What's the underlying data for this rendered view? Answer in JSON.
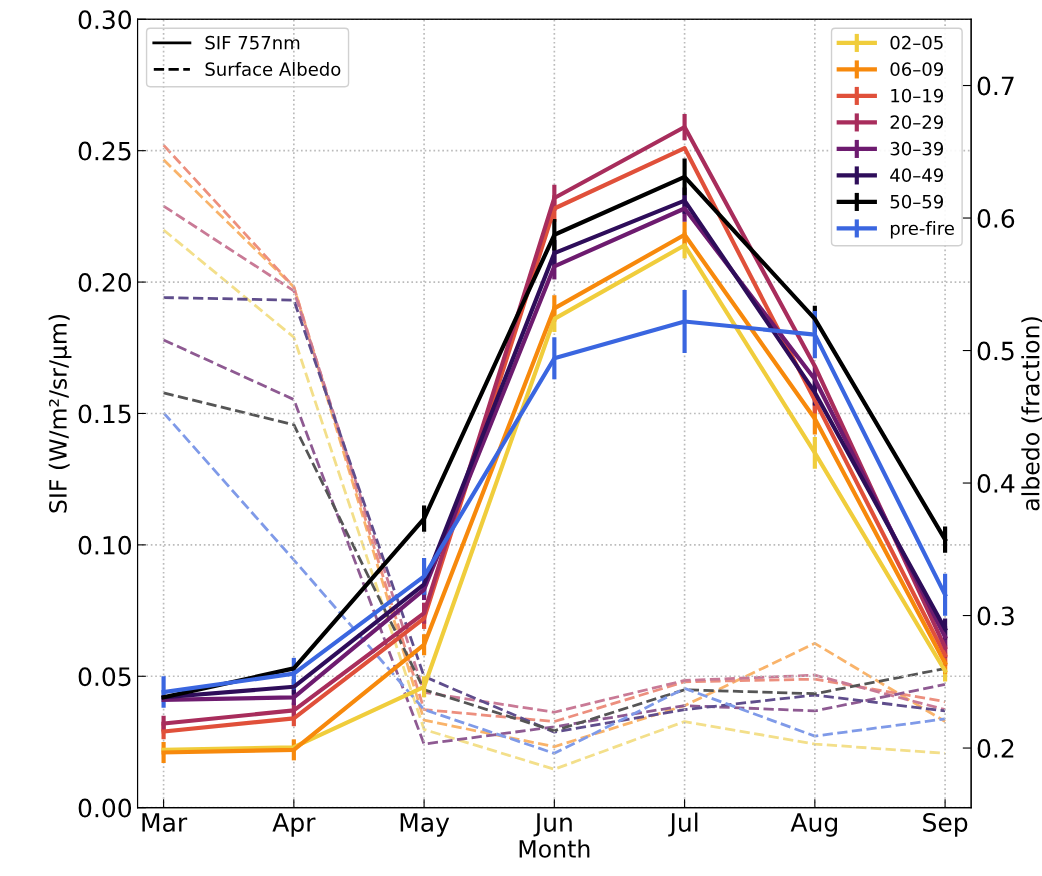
{
  "chart_data": {
    "type": "line",
    "xlabel": "Month",
    "ylabel": "SIF (W/m²/sr/μm)",
    "y2label": "albedo (fraction)",
    "categories": [
      "Mar",
      "Apr",
      "May",
      "Jun",
      "Jul",
      "Aug",
      "Sep"
    ],
    "ylim": [
      0,
      0.3
    ],
    "yticks": [
      {
        "value": 0,
        "label": "0.00"
      },
      {
        "value": 0.05,
        "label": "0.05"
      },
      {
        "value": 0.1,
        "label": "0.10"
      },
      {
        "value": 0.15,
        "label": "0.15"
      },
      {
        "value": 0.2,
        "label": "0.20"
      },
      {
        "value": 0.25,
        "label": "0.25"
      },
      {
        "value": 0.3,
        "label": "0.30"
      }
    ],
    "y2lim": [
      0.155,
      0.75
    ],
    "y2ticks": [
      0.2,
      0.3,
      0.4,
      0.5,
      0.6,
      0.7
    ],
    "grid": true,
    "legend": "top right",
    "marker": "none",
    "annotations": [
      "SIF 757nm",
      "Surface Albedo"
    ],
    "series": [
      {
        "name": "02–05",
        "color": "#f0cd3c",
        "line_style": "solid",
        "values": [
          0.022,
          0.023,
          0.046,
          0.186,
          0.214,
          0.135,
          0.052
        ],
        "errors": [
          null,
          null,
          0.004,
          0.005,
          0.005,
          0.006,
          0.004
        ]
      },
      {
        "name": "06–09",
        "color": "#f7890c",
        "line_style": "solid",
        "values": [
          0.021,
          0.022,
          0.062,
          0.19,
          0.218,
          0.148,
          0.055
        ],
        "errors": [
          0.004,
          0.004,
          0.004,
          0.005,
          0.005,
          0.006,
          0.004
        ]
      },
      {
        "name": "10–19",
        "color": "#e0503a",
        "line_style": "solid",
        "values": [
          0.029,
          0.034,
          0.072,
          0.228,
          0.251,
          0.155,
          0.058
        ],
        "errors": [
          0.003,
          0.003,
          0.004,
          0.005,
          null,
          0.005,
          0.004
        ]
      },
      {
        "name": "20–29",
        "color": "#a82d5c",
        "line_style": "solid",
        "values": [
          0.032,
          0.037,
          0.074,
          0.232,
          0.259,
          0.168,
          0.061
        ],
        "errors": [
          0.003,
          0.003,
          0.004,
          0.005,
          0.005,
          null,
          0.004
        ]
      },
      {
        "name": "30–39",
        "color": "#6d1b6f",
        "line_style": "solid",
        "values": [
          0.041,
          0.042,
          0.083,
          0.206,
          0.228,
          0.163,
          0.065
        ],
        "errors": [
          null,
          0.003,
          0.004,
          0.005,
          0.005,
          0.005,
          0.004
        ]
      },
      {
        "name": "40–49",
        "color": "#2e0d5a",
        "line_style": "solid",
        "values": [
          0.042,
          0.046,
          0.085,
          0.211,
          0.231,
          0.158,
          0.068
        ],
        "errors": [
          null,
          0.003,
          0.004,
          0.005,
          0.005,
          0.005,
          0.004
        ]
      },
      {
        "name": "50–59",
        "color": "#000000",
        "line_style": "solid",
        "values": [
          0.042,
          0.053,
          0.11,
          0.218,
          0.24,
          0.186,
          0.102
        ],
        "errors": [
          null,
          null,
          0.005,
          0.006,
          0.007,
          0.005,
          0.005
        ]
      },
      {
        "name": "pre-fire",
        "color": "#3a66e0",
        "line_style": "solid",
        "values": [
          0.044,
          0.051,
          0.088,
          0.171,
          0.185,
          0.18,
          0.081
        ],
        "errors": [
          0.006,
          0.006,
          0.007,
          0.008,
          0.012,
          0.009,
          0.008
        ]
      },
      {
        "color": "#f3df8a",
        "axis": "y2",
        "line_style": "dashed",
        "values": [
          0.591,
          0.51,
          0.214,
          0.184,
          0.22,
          0.203,
          0.196
        ]
      },
      {
        "color": "#f9b36a",
        "axis": "y2",
        "line_style": "dashed",
        "values": [
          0.644,
          0.548,
          0.221,
          0.201,
          0.232,
          0.279,
          0.22
        ]
      },
      {
        "color": "#ec8f7e",
        "axis": "y2",
        "line_style": "dashed",
        "values": [
          0.655,
          0.548,
          0.229,
          0.22,
          0.25,
          0.252,
          0.235
        ]
      },
      {
        "color": "#c97a96",
        "axis": "y2",
        "line_style": "dashed",
        "values": [
          0.609,
          0.545,
          0.242,
          0.227,
          0.251,
          0.255,
          0.229
        ]
      },
      {
        "color": "#8e5a92",
        "axis": "y2",
        "line_style": "dashed",
        "values": [
          0.508,
          0.463,
          0.203,
          0.216,
          0.232,
          0.228,
          0.248
        ]
      },
      {
        "color": "#5f4d8c",
        "axis": "y2",
        "line_style": "dashed",
        "values": [
          0.54,
          0.538,
          0.254,
          0.212,
          0.229,
          0.24,
          0.228
        ]
      },
      {
        "color": "#555555",
        "axis": "y2",
        "line_style": "dashed",
        "values": [
          0.468,
          0.444,
          0.244,
          0.213,
          0.244,
          0.241,
          0.26
        ]
      },
      {
        "color": "#7f9ae8",
        "axis": "y2",
        "line_style": "dashed",
        "values": [
          0.453,
          0.342,
          0.229,
          0.196,
          0.245,
          0.209,
          0.222
        ]
      }
    ]
  }
}
